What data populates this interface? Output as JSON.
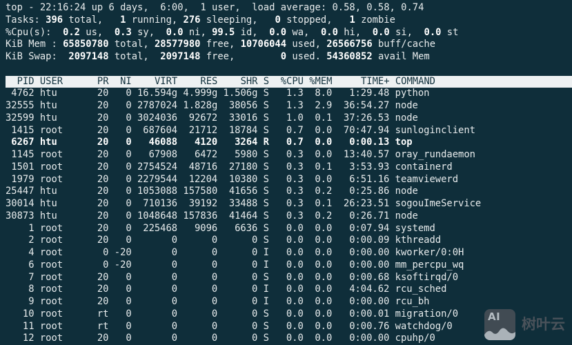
{
  "app": {
    "name": "top process monitor"
  },
  "colors": {
    "background": "#0f2e3a",
    "foreground": "#e7ebec",
    "bold_text": "#ffffff",
    "header_bar_bg": "#eef1f2",
    "header_bar_fg": "#11303c",
    "watermark_gray": "#4a525a"
  },
  "summary": [
    {
      "name": "uptime-line",
      "segments": [
        {
          "text": "top - 22:16:24 up 6 days,  6:00,  1 user,  load average: 0.58, 0.58, 0.74",
          "bold": false
        }
      ]
    },
    {
      "name": "tasks-line",
      "segments": [
        {
          "text": "Tasks: ",
          "bold": false
        },
        {
          "text": "396",
          "bold": true
        },
        {
          "text": " total,   ",
          "bold": false
        },
        {
          "text": "1",
          "bold": true
        },
        {
          "text": " running, ",
          "bold": false
        },
        {
          "text": "276",
          "bold": true
        },
        {
          "text": " sleeping,   ",
          "bold": false
        },
        {
          "text": "0",
          "bold": true
        },
        {
          "text": " stopped,   ",
          "bold": false
        },
        {
          "text": "1",
          "bold": true
        },
        {
          "text": " zombie",
          "bold": false
        }
      ]
    },
    {
      "name": "cpu-line",
      "segments": [
        {
          "text": "%Cpu(s):",
          "bold": false
        },
        {
          "text": "  0.2",
          "bold": true
        },
        {
          "text": " us,",
          "bold": false
        },
        {
          "text": "  0.3",
          "bold": true
        },
        {
          "text": " sy,",
          "bold": false
        },
        {
          "text": "  0.0",
          "bold": true
        },
        {
          "text": " ni,",
          "bold": false
        },
        {
          "text": " 99.5",
          "bold": true
        },
        {
          "text": " id,",
          "bold": false
        },
        {
          "text": "  0.0",
          "bold": true
        },
        {
          "text": " wa,",
          "bold": false
        },
        {
          "text": "  0.0",
          "bold": true
        },
        {
          "text": " hi,",
          "bold": false
        },
        {
          "text": "  0.0",
          "bold": true
        },
        {
          "text": " si,",
          "bold": false
        },
        {
          "text": "  0.0",
          "bold": true
        },
        {
          "text": " st",
          "bold": false
        }
      ]
    },
    {
      "name": "mem-line",
      "segments": [
        {
          "text": "KiB Mem : ",
          "bold": false
        },
        {
          "text": "65850780",
          "bold": true
        },
        {
          "text": " total, ",
          "bold": false
        },
        {
          "text": "28577980",
          "bold": true
        },
        {
          "text": " free, ",
          "bold": false
        },
        {
          "text": "10706044",
          "bold": true
        },
        {
          "text": " used, ",
          "bold": false
        },
        {
          "text": "26566756",
          "bold": true
        },
        {
          "text": " buff/cache",
          "bold": false
        }
      ]
    },
    {
      "name": "swap-line",
      "segments": [
        {
          "text": "KiB Swap: ",
          "bold": false
        },
        {
          "text": " 2097148",
          "bold": true
        },
        {
          "text": " total, ",
          "bold": false
        },
        {
          "text": " 2097148",
          "bold": true
        },
        {
          "text": " free, ",
          "bold": false
        },
        {
          "text": "       0",
          "bold": true
        },
        {
          "text": " used. ",
          "bold": false
        },
        {
          "text": "54360852",
          "bold": true
        },
        {
          "text": " avail Mem",
          "bold": false
        }
      ]
    }
  ],
  "table": {
    "header_text": "  PID USER      PR  NI    VIRT    RES    SHR S  %CPU %MEM     TIME+ COMMAND",
    "columns": [
      "PID",
      "USER",
      "PR",
      "NI",
      "VIRT",
      "RES",
      "SHR",
      "S",
      "%CPU",
      "%MEM",
      "TIME+",
      "COMMAND"
    ],
    "rows": [
      {
        "pid": "4762",
        "user": "htu",
        "pr": "20",
        "ni": "0",
        "virt": "16.594g",
        "res": "4.999g",
        "shr": "1.506g",
        "s": "S",
        "cpu": "1.3",
        "mem": "8.0",
        "time": "1:29.48",
        "command": "python",
        "highlight": false
      },
      {
        "pid": "32555",
        "user": "htu",
        "pr": "20",
        "ni": "0",
        "virt": "2787024",
        "res": "1.828g",
        "shr": "38056",
        "s": "S",
        "cpu": "1.3",
        "mem": "2.9",
        "time": "36:54.27",
        "command": "node",
        "highlight": false
      },
      {
        "pid": "32599",
        "user": "htu",
        "pr": "20",
        "ni": "0",
        "virt": "3024036",
        "res": "92672",
        "shr": "33016",
        "s": "S",
        "cpu": "1.0",
        "mem": "0.1",
        "time": "37:26.53",
        "command": "node",
        "highlight": false
      },
      {
        "pid": "1415",
        "user": "root",
        "pr": "20",
        "ni": "0",
        "virt": "687604",
        "res": "21712",
        "shr": "18784",
        "s": "S",
        "cpu": "0.7",
        "mem": "0.0",
        "time": "70:47.94",
        "command": "sunloginclient",
        "highlight": false
      },
      {
        "pid": "6267",
        "user": "htu",
        "pr": "20",
        "ni": "0",
        "virt": "46088",
        "res": "4120",
        "shr": "3264",
        "s": "R",
        "cpu": "0.7",
        "mem": "0.0",
        "time": "0:00.13",
        "command": "top",
        "highlight": true
      },
      {
        "pid": "1145",
        "user": "root",
        "pr": "20",
        "ni": "0",
        "virt": "67908",
        "res": "6472",
        "shr": "5980",
        "s": "S",
        "cpu": "0.3",
        "mem": "0.0",
        "time": "13:40.57",
        "command": "oray_rundaemon",
        "highlight": false
      },
      {
        "pid": "1501",
        "user": "root",
        "pr": "20",
        "ni": "0",
        "virt": "2754524",
        "res": "48716",
        "shr": "27180",
        "s": "S",
        "cpu": "0.3",
        "mem": "0.1",
        "time": "3:53.93",
        "command": "containerd",
        "highlight": false
      },
      {
        "pid": "1979",
        "user": "root",
        "pr": "20",
        "ni": "0",
        "virt": "2279544",
        "res": "12204",
        "shr": "10380",
        "s": "S",
        "cpu": "0.3",
        "mem": "0.0",
        "time": "6:51.16",
        "command": "teamviewerd",
        "highlight": false
      },
      {
        "pid": "25447",
        "user": "htu",
        "pr": "20",
        "ni": "0",
        "virt": "1053088",
        "res": "157580",
        "shr": "41656",
        "s": "S",
        "cpu": "0.3",
        "mem": "0.2",
        "time": "0:25.86",
        "command": "node",
        "highlight": false
      },
      {
        "pid": "30014",
        "user": "htu",
        "pr": "20",
        "ni": "0",
        "virt": "710136",
        "res": "39192",
        "shr": "33488",
        "s": "S",
        "cpu": "0.3",
        "mem": "0.1",
        "time": "26:23.51",
        "command": "sogouImeService",
        "highlight": false
      },
      {
        "pid": "30873",
        "user": "htu",
        "pr": "20",
        "ni": "0",
        "virt": "1048648",
        "res": "157836",
        "shr": "41464",
        "s": "S",
        "cpu": "0.3",
        "mem": "0.2",
        "time": "0:26.71",
        "command": "node",
        "highlight": false
      },
      {
        "pid": "1",
        "user": "root",
        "pr": "20",
        "ni": "0",
        "virt": "225468",
        "res": "9096",
        "shr": "6636",
        "s": "S",
        "cpu": "0.0",
        "mem": "0.0",
        "time": "0:07.94",
        "command": "systemd",
        "highlight": false
      },
      {
        "pid": "2",
        "user": "root",
        "pr": "20",
        "ni": "0",
        "virt": "0",
        "res": "0",
        "shr": "0",
        "s": "S",
        "cpu": "0.0",
        "mem": "0.0",
        "time": "0:00.09",
        "command": "kthreadd",
        "highlight": false
      },
      {
        "pid": "4",
        "user": "root",
        "pr": "0",
        "ni": "-20",
        "virt": "0",
        "res": "0",
        "shr": "0",
        "s": "I",
        "cpu": "0.0",
        "mem": "0.0",
        "time": "0:00.00",
        "command": "kworker/0:0H",
        "highlight": false
      },
      {
        "pid": "6",
        "user": "root",
        "pr": "0",
        "ni": "-20",
        "virt": "0",
        "res": "0",
        "shr": "0",
        "s": "I",
        "cpu": "0.0",
        "mem": "0.0",
        "time": "0:00.00",
        "command": "mm_percpu_wq",
        "highlight": false
      },
      {
        "pid": "7",
        "user": "root",
        "pr": "20",
        "ni": "0",
        "virt": "0",
        "res": "0",
        "shr": "0",
        "s": "S",
        "cpu": "0.0",
        "mem": "0.0",
        "time": "0:00.68",
        "command": "ksoftirqd/0",
        "highlight": false
      },
      {
        "pid": "8",
        "user": "root",
        "pr": "20",
        "ni": "0",
        "virt": "0",
        "res": "0",
        "shr": "0",
        "s": "I",
        "cpu": "0.0",
        "mem": "0.0",
        "time": "4:04.62",
        "command": "rcu_sched",
        "highlight": false
      },
      {
        "pid": "9",
        "user": "root",
        "pr": "20",
        "ni": "0",
        "virt": "0",
        "res": "0",
        "shr": "0",
        "s": "I",
        "cpu": "0.0",
        "mem": "0.0",
        "time": "0:00.00",
        "command": "rcu_bh",
        "highlight": false
      },
      {
        "pid": "10",
        "user": "root",
        "pr": "rt",
        "ni": "0",
        "virt": "0",
        "res": "0",
        "shr": "0",
        "s": "S",
        "cpu": "0.0",
        "mem": "0.0",
        "time": "0:00.01",
        "command": "migration/0",
        "highlight": false
      },
      {
        "pid": "11",
        "user": "root",
        "pr": "rt",
        "ni": "0",
        "virt": "0",
        "res": "0",
        "shr": "0",
        "s": "S",
        "cpu": "0.0",
        "mem": "0.0",
        "time": "0:00.76",
        "command": "watchdog/0",
        "highlight": false
      },
      {
        "pid": "12",
        "user": "root",
        "pr": "20",
        "ni": "0",
        "virt": "0",
        "res": "0",
        "shr": "0",
        "s": "S",
        "cpu": "0.0",
        "mem": "0.0",
        "time": "0:00.00",
        "command": "cpuhp/0",
        "highlight": false
      }
    ]
  },
  "watermark": {
    "icon_text": "AI",
    "label": "树叶云"
  }
}
